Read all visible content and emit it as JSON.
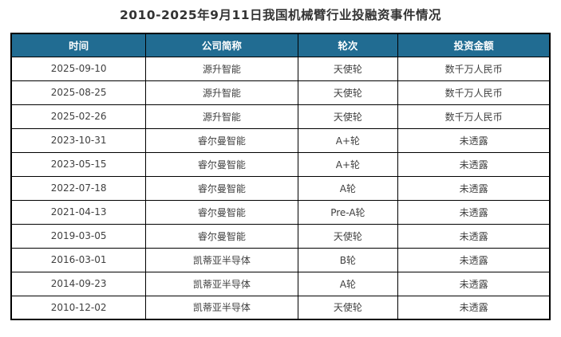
{
  "page": {
    "title": "2010-2025年9月11日我国机械臂行业投融资事件情况"
  },
  "colors": {
    "header_bg": "#216c92",
    "header_text": "#ffffff",
    "border": "#000000",
    "title_text": "#333333",
    "cell_text": "#404040"
  },
  "chart_data": {
    "type": "table",
    "title": "2010-2025年9月11日我国机械臂行业投融资事件情况",
    "columns": [
      "时间",
      "公司简称",
      "轮次",
      "投资金额"
    ],
    "rows": [
      [
        "2025-09-10",
        "源升智能",
        "天使轮",
        "数千万人民币"
      ],
      [
        "2025-08-25",
        "源升智能",
        "天使轮",
        "数千万人民币"
      ],
      [
        "2025-02-26",
        "源升智能",
        "天使轮",
        "数千万人民币"
      ],
      [
        "2023-10-31",
        "睿尔曼智能",
        "A+轮",
        "未透露"
      ],
      [
        "2023-05-15",
        "睿尔曼智能",
        "A+轮",
        "未透露"
      ],
      [
        "2022-07-18",
        "睿尔曼智能",
        "A轮",
        "未透露"
      ],
      [
        "2021-04-13",
        "睿尔曼智能",
        "Pre-A轮",
        "未透露"
      ],
      [
        "2019-03-05",
        "睿尔曼智能",
        "天使轮",
        "未透露"
      ],
      [
        "2016-03-01",
        "凯蒂亚半导体",
        "B轮",
        "未透露"
      ],
      [
        "2014-09-23",
        "凯蒂亚半导体",
        "A轮",
        "未透露"
      ],
      [
        "2010-12-02",
        "凯蒂亚半导体",
        "天使轮",
        "未透露"
      ]
    ]
  }
}
